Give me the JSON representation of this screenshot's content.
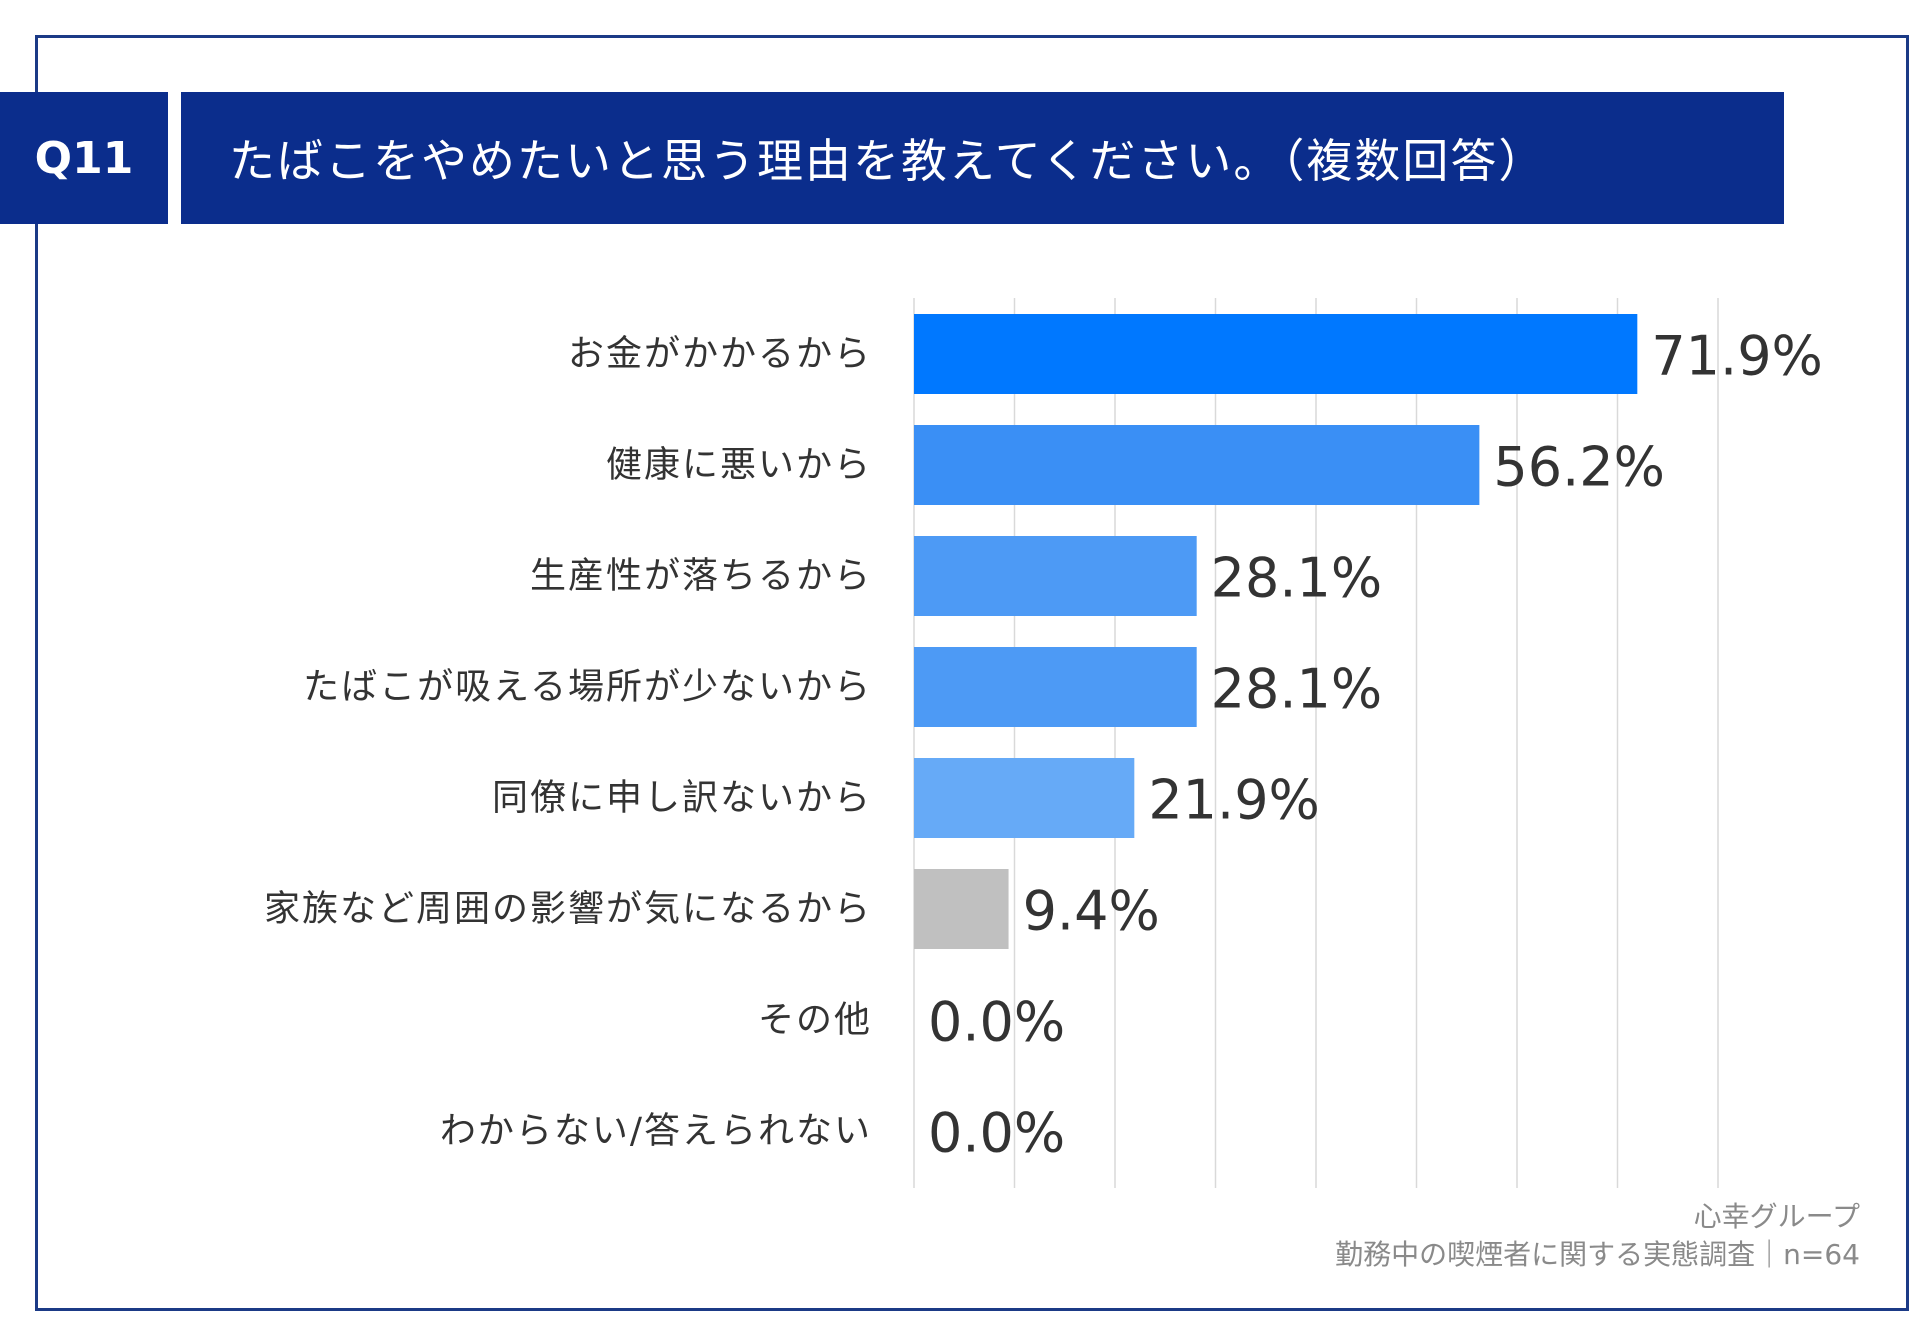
{
  "header": {
    "question_number": "Q11",
    "title": "たばこをやめたいと思う理由を教えてください。（複数回答）"
  },
  "chart_data": {
    "type": "bar",
    "orientation": "horizontal",
    "categories": [
      "お金がかかるから",
      "健康に悪いから",
      "生産性が落ちるから",
      "たばこが吸える場所が少ないから",
      "同僚に申し訳ないから",
      "家族など周囲の影響が気になるから",
      "その他",
      "わからない/答えられない"
    ],
    "values": [
      71.9,
      56.2,
      28.1,
      28.1,
      21.9,
      9.4,
      0.0,
      0.0
    ],
    "value_labels": [
      "71.9%",
      "56.2%",
      "28.1%",
      "28.1%",
      "21.9%",
      "9.4%",
      "0.0%",
      "0.0%"
    ],
    "bar_colors": [
      "#0078ff",
      "#3a8ff5",
      "#4d9af5",
      "#4d9af5",
      "#66aaf7",
      "#c0c0c0",
      "#c0c0c0",
      "#c0c0c0"
    ],
    "xlim": [
      0,
      80
    ],
    "grid": true
  },
  "footer": {
    "line1": "心幸グループ",
    "line2": "勤務中の喫煙者に関する実態調査｜n=64"
  }
}
